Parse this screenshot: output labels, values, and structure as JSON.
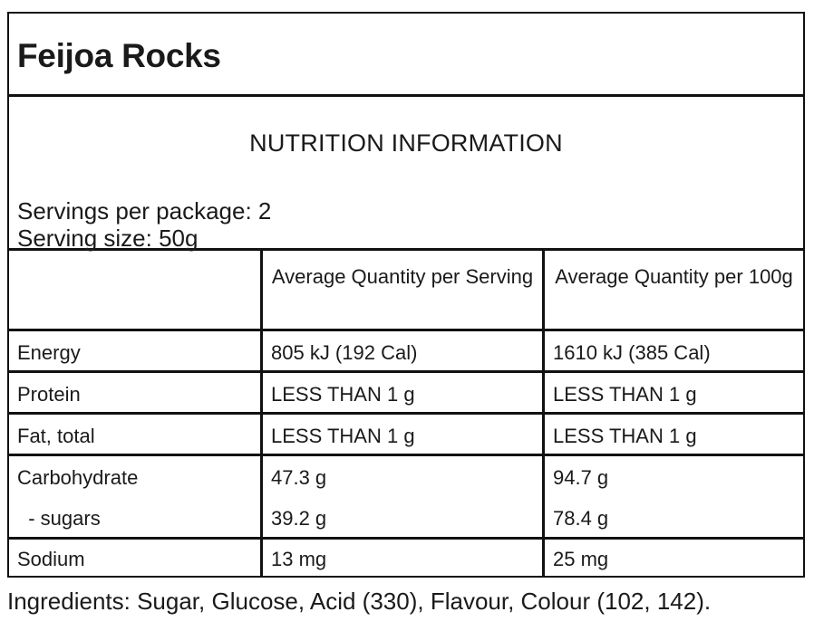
{
  "product": {
    "title": "Feijoa Rocks"
  },
  "nutrition": {
    "heading": "NUTRITION INFORMATION",
    "servings_per_package": "Servings per package: 2",
    "serving_size": "Serving size: 50g",
    "columns": [
      "",
      "Average Quantity per Serving",
      "Average Quantity per 100g"
    ],
    "rows": [
      {
        "name": "Energy",
        "per_serving": "805 kJ (192 Cal)",
        "per_100g": "1610 kJ (385 Cal)"
      },
      {
        "name": "Protein",
        "per_serving": "LESS THAN 1 g",
        "per_100g": "LESS THAN 1 g"
      },
      {
        "name": "Fat, total",
        "per_serving": "LESS THAN 1 g",
        "per_100g": "LESS THAN 1 g"
      },
      {
        "name": "Carbohydrate",
        "per_serving": "47.3 g",
        "per_100g": "94.7 g"
      },
      {
        "name": "  - sugars",
        "per_serving": "39.2 g",
        "per_100g": "78.4 g"
      },
      {
        "name": "Sodium",
        "per_serving": "13 mg",
        "per_100g": "25 mg"
      }
    ]
  },
  "ingredients": "Ingredients: Sugar, Glucose, Acid (330), Flavour, Colour (102, 142)."
}
